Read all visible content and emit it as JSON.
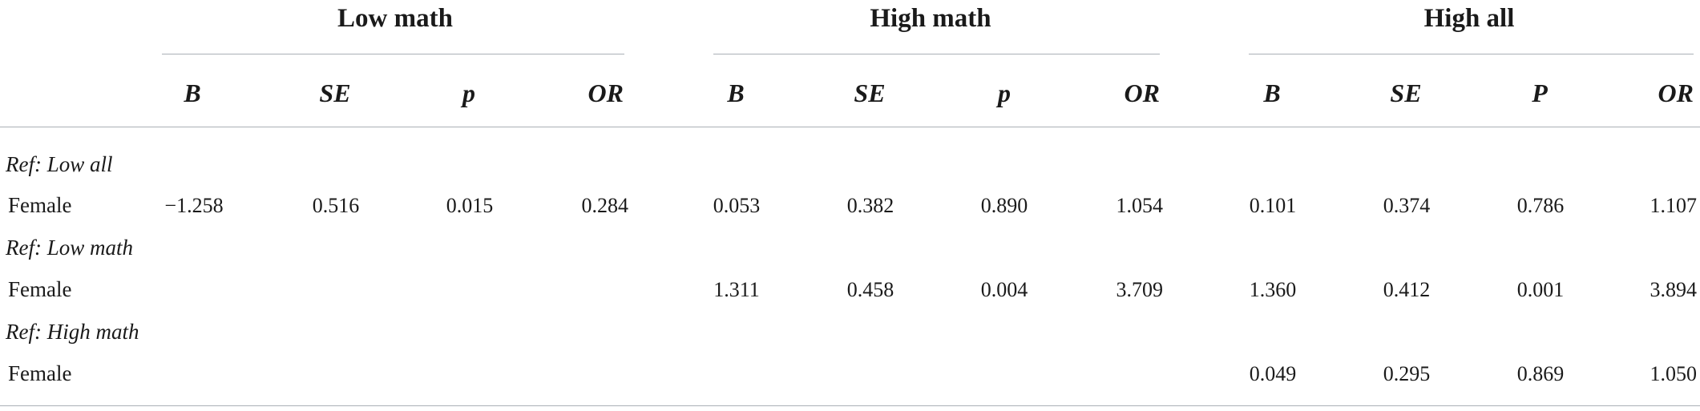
{
  "groups": [
    "Low math",
    "High math",
    "High all"
  ],
  "columns": {
    "low_math": [
      "B",
      "SE",
      "p",
      "OR"
    ],
    "high_math": [
      "B",
      "SE",
      "p",
      "OR"
    ],
    "high_all": [
      "B",
      "SE",
      "P",
      "OR"
    ]
  },
  "sections": [
    {
      "ref": "Ref: Low all",
      "label": "Female",
      "low_math": [
        "−1.258",
        "0.516",
        "0.015",
        "0.284"
      ],
      "high_math": [
        "0.053",
        "0.382",
        "0.890",
        "1.054"
      ],
      "high_all": [
        "0.101",
        "0.374",
        "0.786",
        "1.107"
      ]
    },
    {
      "ref": "Ref: Low math",
      "label": "Female",
      "high_math": [
        "1.311",
        "0.458",
        "0.004",
        "3.709"
      ],
      "high_all": [
        "1.360",
        "0.412",
        "0.001",
        "3.894"
      ]
    },
    {
      "ref": "Ref: High math",
      "label": "Female",
      "high_all": [
        "0.049",
        "0.295",
        "0.869",
        "1.050"
      ]
    }
  ]
}
